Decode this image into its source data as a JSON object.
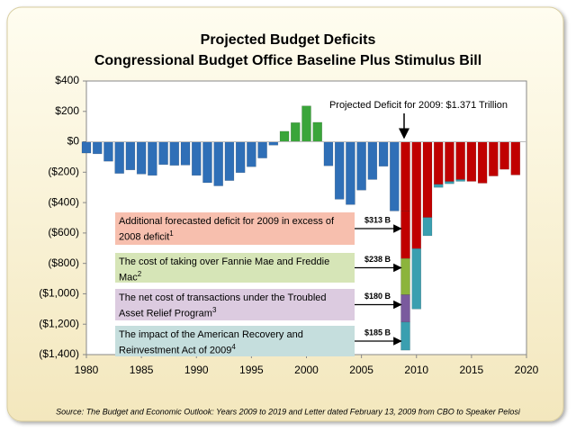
{
  "chart_data": {
    "type": "bar",
    "title": [
      "Projected Budget Deficits",
      "Congressional Budget Office Baseline Plus Stimulus Bill"
    ],
    "x": [
      1980,
      1981,
      1982,
      1983,
      1984,
      1985,
      1986,
      1987,
      1988,
      1989,
      1990,
      1991,
      1992,
      1993,
      1994,
      1995,
      1996,
      1997,
      1998,
      1999,
      2000,
      2001,
      2002,
      2003,
      2004,
      2005,
      2006,
      2007,
      2008,
      2009,
      2010,
      2011,
      2012,
      2013,
      2014,
      2015,
      2016,
      2017,
      2018,
      2019
    ],
    "xlim": [
      1980,
      2020
    ],
    "xticks": [
      1980,
      1985,
      1990,
      1995,
      2000,
      2005,
      2010,
      2015,
      2020
    ],
    "ylim": [
      -1400,
      400
    ],
    "yticks": [
      {
        "value": 400,
        "label": "$400"
      },
      {
        "value": 200,
        "label": "$200"
      },
      {
        "value": 0,
        "label": "$0"
      },
      {
        "value": -200,
        "label": "($200)"
      },
      {
        "value": -400,
        "label": "($400)"
      },
      {
        "value": -600,
        "label": "($600)"
      },
      {
        "value": -800,
        "label": "($800)"
      },
      {
        "value": -1000,
        "label": "($1,000)"
      },
      {
        "value": -1200,
        "label": "($1,200)"
      },
      {
        "value": -1400,
        "label": "($1,400)"
      }
    ],
    "grid": false,
    "series": [
      {
        "color": "#2f6fb7",
        "values": [
          -74,
          -79,
          -128,
          -208,
          -185,
          -212,
          -221,
          -150,
          -155,
          -153,
          -221,
          -269,
          -290,
          -255,
          -203,
          -164,
          -107,
          -22,
          null,
          null,
          null,
          null,
          -158,
          -378,
          -413,
          -318,
          -248,
          -161,
          -455,
          null,
          null,
          null,
          null,
          null,
          null,
          null,
          null,
          null,
          null,
          null
        ]
      },
      {
        "color": "#3aa53a",
        "values": [
          null,
          null,
          null,
          null,
          null,
          null,
          null,
          null,
          null,
          null,
          null,
          null,
          null,
          null,
          null,
          null,
          null,
          null,
          69,
          126,
          236,
          128,
          null,
          null,
          null,
          null,
          null,
          null,
          null,
          null,
          null,
          null,
          null,
          null,
          null,
          null,
          null,
          null,
          null,
          null
        ]
      },
      {
        "color": "#c00000",
        "values": [
          null,
          null,
          null,
          null,
          null,
          null,
          null,
          null,
          null,
          null,
          null,
          null,
          null,
          null,
          null,
          null,
          null,
          null,
          null,
          null,
          null,
          null,
          null,
          null,
          null,
          null,
          null,
          null,
          null,
          -455,
          -703,
          -498,
          -280,
          -261,
          -248,
          -260,
          -272,
          -225,
          -181,
          -218
        ]
      },
      {
        "color": "#c00000",
        "values": [
          null,
          null,
          null,
          null,
          null,
          null,
          null,
          null,
          null,
          null,
          null,
          null,
          null,
          null,
          null,
          null,
          null,
          null,
          null,
          null,
          null,
          null,
          null,
          null,
          null,
          null,
          null,
          null,
          null,
          -313,
          null,
          null,
          null,
          null,
          null,
          null,
          null,
          null,
          null,
          null
        ],
        "value_labels": [
          null,
          null,
          null,
          null,
          null,
          null,
          null,
          null,
          null,
          null,
          null,
          null,
          null,
          null,
          null,
          null,
          null,
          null,
          null,
          null,
          null,
          null,
          null,
          null,
          null,
          null,
          null,
          null,
          null,
          "$313 B",
          null,
          null,
          null,
          null,
          null,
          null,
          null,
          null,
          null,
          null
        ]
      },
      {
        "color": "#8cb43c",
        "values": [
          null,
          null,
          null,
          null,
          null,
          null,
          null,
          null,
          null,
          null,
          null,
          null,
          null,
          null,
          null,
          null,
          null,
          null,
          null,
          null,
          null,
          null,
          null,
          null,
          null,
          null,
          null,
          null,
          null,
          -238,
          null,
          null,
          null,
          null,
          null,
          null,
          null,
          null,
          null,
          null
        ],
        "value_labels": [
          null,
          null,
          null,
          null,
          null,
          null,
          null,
          null,
          null,
          null,
          null,
          null,
          null,
          null,
          null,
          null,
          null,
          null,
          null,
          null,
          null,
          null,
          null,
          null,
          null,
          null,
          null,
          null,
          null,
          "$238 B",
          null,
          null,
          null,
          null,
          null,
          null,
          null,
          null,
          null,
          null
        ]
      },
      {
        "color": "#7a5a9e",
        "values": [
          null,
          null,
          null,
          null,
          null,
          null,
          null,
          null,
          null,
          null,
          null,
          null,
          null,
          null,
          null,
          null,
          null,
          null,
          null,
          null,
          null,
          null,
          null,
          null,
          null,
          null,
          null,
          null,
          null,
          -180,
          null,
          null,
          null,
          null,
          null,
          null,
          null,
          null,
          null,
          null
        ],
        "value_labels": [
          null,
          null,
          null,
          null,
          null,
          null,
          null,
          null,
          null,
          null,
          null,
          null,
          null,
          null,
          null,
          null,
          null,
          null,
          null,
          null,
          null,
          null,
          null,
          null,
          null,
          null,
          null,
          null,
          null,
          "$180 B",
          null,
          null,
          null,
          null,
          null,
          null,
          null,
          null,
          null,
          null
        ]
      },
      {
        "color": "#3a9fb0",
        "values": [
          null,
          null,
          null,
          null,
          null,
          null,
          null,
          null,
          null,
          null,
          null,
          null,
          null,
          null,
          null,
          null,
          null,
          null,
          null,
          null,
          null,
          null,
          null,
          null,
          null,
          null,
          null,
          null,
          null,
          -185,
          -397,
          -120,
          -20,
          -15,
          -12,
          null,
          null,
          null,
          null,
          null
        ],
        "value_labels": [
          null,
          null,
          null,
          null,
          null,
          null,
          null,
          null,
          null,
          null,
          null,
          null,
          null,
          null,
          null,
          null,
          null,
          null,
          null,
          null,
          null,
          null,
          null,
          null,
          null,
          null,
          null,
          null,
          null,
          "$185 B",
          null,
          null,
          null,
          null,
          null,
          null,
          null,
          null,
          null,
          null
        ]
      }
    ],
    "callout": "Projected Deficit for 2009: $1.371 Trillion",
    "annotations": [
      {
        "text": "Additional forecasted deficit for 2009 in excess of 2008 deficit",
        "note": "1",
        "color": "#f7bfae"
      },
      {
        "text": "The cost of taking over Fannie Mae and Freddie Mac",
        "note": "2",
        "color": "#d6e5b7"
      },
      {
        "text": "The net cost of transactions under the Troubled Asset Relief Program",
        "note": "3",
        "color": "#dccbe0"
      },
      {
        "text": "The impact of the American Recovery and Reinvestment Act of 2009",
        "note": "4",
        "color": "#c5dedd"
      }
    ],
    "source": "Source: The Budget and Economic Outlook: Years 2009 to 2019 and Letter dated February 13, 2009 from CBO to Speaker Pelosi"
  }
}
